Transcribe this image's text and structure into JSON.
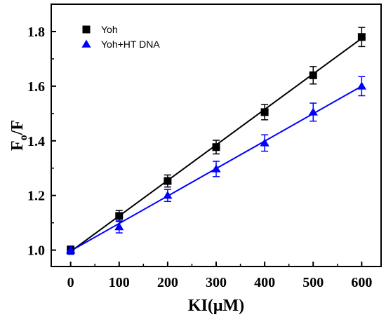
{
  "chart_data": {
    "type": "scatter",
    "xlabel": "KI(μM)",
    "ylabel": {
      "main": "F",
      "sub": "o",
      "suffix": "/F"
    },
    "xlim": [
      -40,
      640
    ],
    "ylim": [
      0.94,
      1.9
    ],
    "xticks": [
      0,
      100,
      200,
      300,
      400,
      500,
      600
    ],
    "yticks": [
      1.0,
      1.2,
      1.4,
      1.6,
      1.8
    ],
    "yticklabels": [
      "1.0",
      "1.2",
      "1.4",
      "1.6",
      "1.8"
    ],
    "legend_position": "top-left",
    "series": [
      {
        "name": "Yoh",
        "marker": "square",
        "color": "#000000",
        "x": [
          0,
          100,
          200,
          300,
          400,
          500,
          600
        ],
        "y": [
          1.0,
          1.125,
          1.253,
          1.377,
          1.505,
          1.64,
          1.78
        ],
        "err": [
          0.015,
          0.02,
          0.022,
          0.025,
          0.028,
          0.032,
          0.035
        ],
        "fit": [
          [
            0,
            0.995
          ],
          [
            600,
            1.775
          ]
        ]
      },
      {
        "name": "Yoh+HT DNA",
        "marker": "triangle",
        "color": "#0000ff",
        "x": [
          0,
          100,
          200,
          300,
          400,
          500,
          600
        ],
        "y": [
          1.0,
          1.085,
          1.2,
          1.297,
          1.392,
          1.505,
          1.6
        ],
        "err": [
          0.015,
          0.022,
          0.022,
          0.028,
          0.03,
          0.033,
          0.035
        ],
        "fit": [
          [
            0,
            0.997
          ],
          [
            600,
            1.6
          ]
        ]
      }
    ]
  }
}
